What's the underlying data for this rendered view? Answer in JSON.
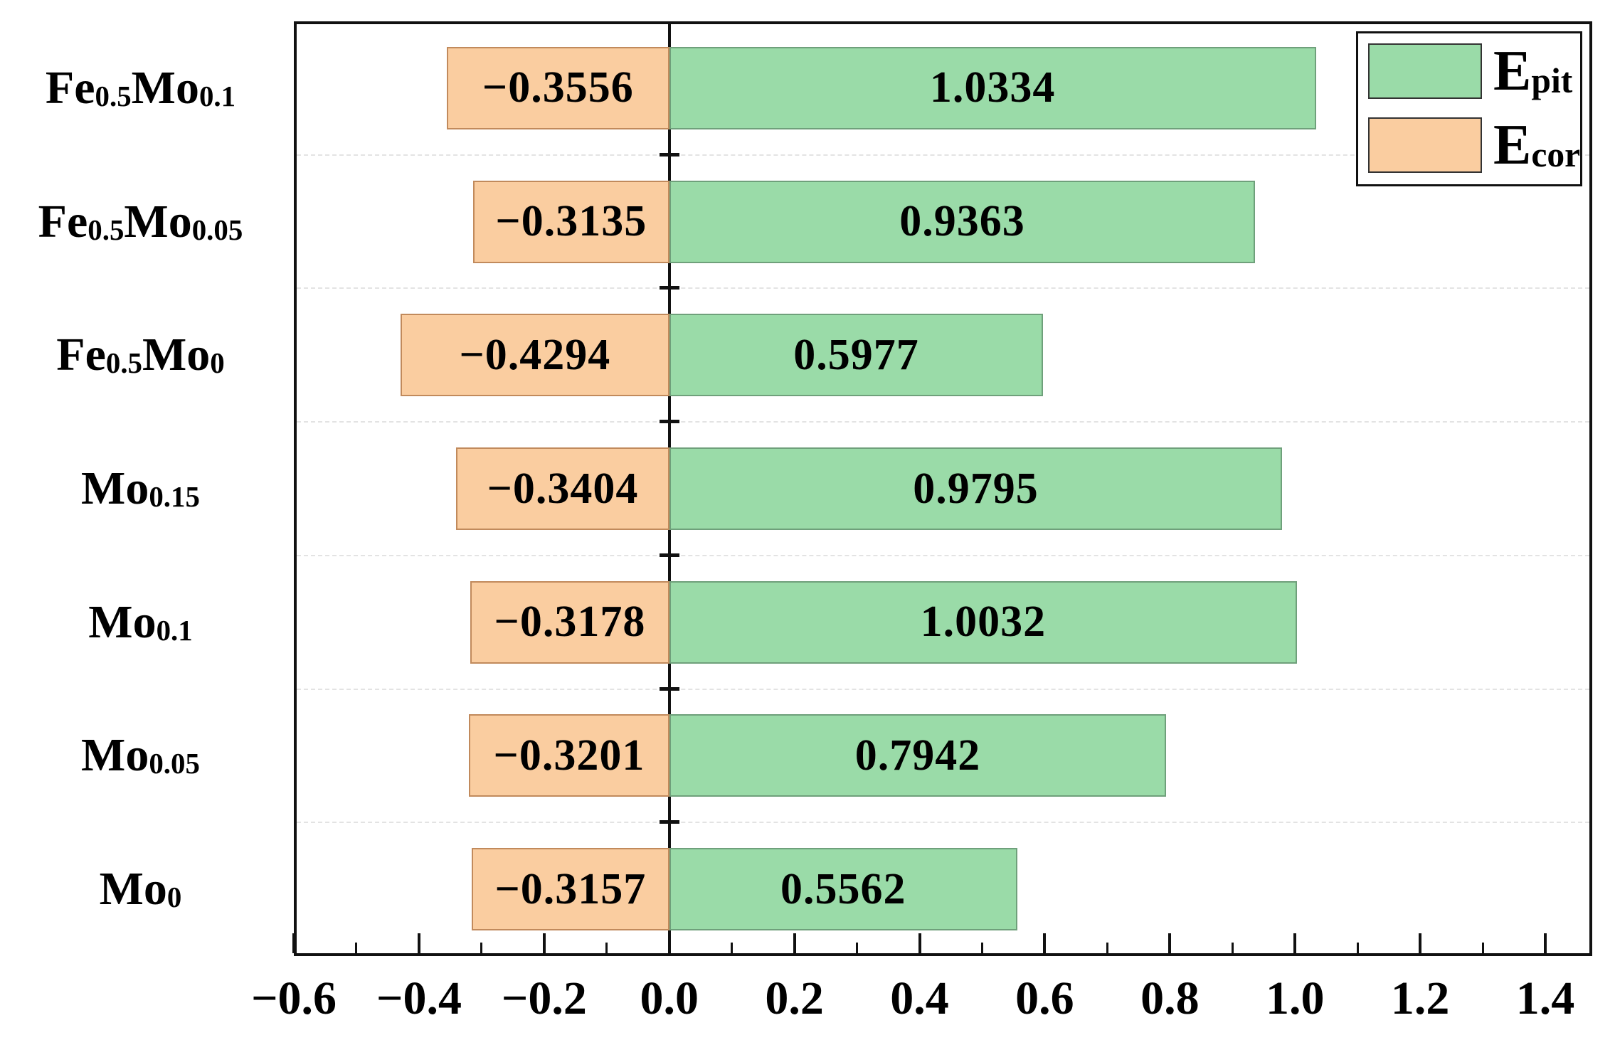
{
  "chart_data": {
    "type": "bar",
    "orientation": "horizontal",
    "title": "",
    "xlabel": "",
    "ylabel": "",
    "xlim": [
      -0.6,
      1.475
    ],
    "grid": "dashed horizontal lines between category rows",
    "legend_position": "top-right",
    "categories": [
      {
        "text": "Fe0.5Mo0.1",
        "segments": [
          [
            "Fe",
            false
          ],
          [
            "0.5",
            true
          ],
          [
            "Mo",
            false
          ],
          [
            "0.1",
            true
          ]
        ]
      },
      {
        "text": "Fe0.5Mo0.05",
        "segments": [
          [
            "Fe",
            false
          ],
          [
            "0.5",
            true
          ],
          [
            "Mo",
            false
          ],
          [
            "0.05",
            true
          ]
        ]
      },
      {
        "text": "Fe0.5Mo0",
        "segments": [
          [
            "Fe",
            false
          ],
          [
            "0.5",
            true
          ],
          [
            "Mo",
            false
          ],
          [
            "0",
            true
          ]
        ]
      },
      {
        "text": "Mo0.15",
        "segments": [
          [
            "Mo",
            false
          ],
          [
            "0.15",
            true
          ]
        ]
      },
      {
        "text": "Mo0.1",
        "segments": [
          [
            "Mo",
            false
          ],
          [
            "0.1",
            true
          ]
        ]
      },
      {
        "text": "Mo0.05",
        "segments": [
          [
            "Mo",
            false
          ],
          [
            "0.05",
            true
          ]
        ]
      },
      {
        "text": "Mo0",
        "segments": [
          [
            "Mo",
            false
          ],
          [
            "0",
            true
          ]
        ]
      }
    ],
    "series": [
      {
        "name": "E_pit",
        "name_main": "E",
        "name_sub": "pit",
        "color": "#9adba8",
        "edge_color": "#6fa07b",
        "values": [
          1.0334,
          0.9363,
          0.5977,
          0.9795,
          1.0032,
          0.7942,
          0.5562
        ],
        "labels": [
          "1.0334",
          "0.9363",
          "0.5977",
          "0.9795",
          "1.0032",
          "0.7942",
          "0.5562"
        ]
      },
      {
        "name": "E_cor",
        "name_main": "E",
        "name_sub": "cor",
        "color": "#facda0",
        "edge_color": "#c18a5c",
        "values": [
          -0.3556,
          -0.3135,
          -0.4294,
          -0.3404,
          -0.3178,
          -0.3201,
          -0.3157
        ],
        "labels": [
          "−0.3556",
          "−0.3135",
          "−0.4294",
          "−0.3404",
          "−0.3178",
          "−0.3201",
          "−0.3157"
        ]
      }
    ],
    "x_major_ticks": [
      {
        "v": -0.6,
        "label": "−0.6"
      },
      {
        "v": -0.4,
        "label": "−0.4"
      },
      {
        "v": -0.2,
        "label": "−0.2"
      },
      {
        "v": 0.0,
        "label": "0.0"
      },
      {
        "v": 0.2,
        "label": "0.2"
      },
      {
        "v": 0.4,
        "label": "0.4"
      },
      {
        "v": 0.6,
        "label": "0.6"
      },
      {
        "v": 0.8,
        "label": "0.8"
      },
      {
        "v": 1.0,
        "label": "1.0"
      },
      {
        "v": 1.2,
        "label": "1.2"
      },
      {
        "v": 1.4,
        "label": "1.4"
      }
    ],
    "x_minor_ticks": [
      -0.5,
      -0.3,
      -0.1,
      0.1,
      0.3,
      0.5,
      0.7,
      0.9,
      1.1,
      1.3
    ],
    "colors": {
      "epit_fill": "#9adba8",
      "epit_edge": "#6fa07b",
      "ecor_fill": "#facda0",
      "ecor_edge": "#c18a5c",
      "axis": "#111111",
      "gridline": "#e3e3e3",
      "text": "#000000"
    }
  }
}
